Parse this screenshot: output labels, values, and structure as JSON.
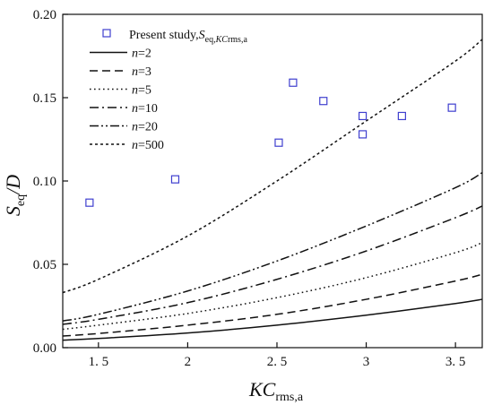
{
  "chart_data": {
    "type": "scatter",
    "xlabel": {
      "main": "KC",
      "sub": "rms,a"
    },
    "ylabel": {
      "main": "S",
      "sub": "eq",
      "tail": "/D"
    },
    "xlim": [
      1.3,
      3.65
    ],
    "ylim": [
      0.0,
      0.2
    ],
    "xticks": [
      1.5,
      2,
      2.5,
      3,
      3.5
    ],
    "xtick_labels": [
      "1. 5",
      "2",
      "2. 5",
      "3",
      "3. 5"
    ],
    "yticks": [
      0.0,
      0.05,
      0.1,
      0.15,
      0.2
    ],
    "ytick_labels": [
      "0.00",
      "0.05",
      "0.10",
      "0.15",
      "0.20"
    ],
    "grid": false,
    "legend_position": "top-left",
    "scatter": {
      "name": {
        "main": "Present study,",
        "s": "S",
        "sub": "eq,",
        "subItalic": "KC",
        "subTail": "rms,a"
      },
      "color": "#3f3fcf",
      "x": [
        1.45,
        1.93,
        2.51,
        2.59,
        2.76,
        2.98,
        2.98,
        3.2,
        3.48
      ],
      "y": [
        0.087,
        0.101,
        0.123,
        0.159,
        0.148,
        0.139,
        0.128,
        0.139,
        0.144
      ]
    },
    "series": [
      {
        "name": {
          "var": "n",
          "eq": "=2"
        },
        "dash": "solid",
        "x": [
          1.3,
          1.5,
          2.0,
          2.5,
          3.0,
          3.5,
          3.65
        ],
        "y": [
          0.0045,
          0.0055,
          0.0088,
          0.0135,
          0.0195,
          0.0265,
          0.029
        ]
      },
      {
        "name": {
          "var": "n",
          "eq": "=3"
        },
        "dash": "dash",
        "x": [
          1.3,
          1.5,
          2.0,
          2.5,
          3.0,
          3.5,
          3.65
        ],
        "y": [
          0.007,
          0.0085,
          0.0135,
          0.02,
          0.029,
          0.04,
          0.044
        ]
      },
      {
        "name": {
          "var": "n",
          "eq": "=5"
        },
        "dash": "dot",
        "x": [
          1.3,
          1.5,
          2.0,
          2.5,
          3.0,
          3.5,
          3.65
        ],
        "y": [
          0.011,
          0.0135,
          0.0205,
          0.03,
          0.042,
          0.057,
          0.063
        ]
      },
      {
        "name": {
          "var": "n",
          "eq": "=10"
        },
        "dash": "dashdot",
        "x": [
          1.3,
          1.5,
          2.0,
          2.5,
          3.0,
          3.5,
          3.65
        ],
        "y": [
          0.014,
          0.017,
          0.027,
          0.041,
          0.058,
          0.078,
          0.085
        ]
      },
      {
        "name": {
          "var": "n",
          "eq": "=20"
        },
        "dash": "dashdotdot",
        "x": [
          1.3,
          1.5,
          2.0,
          2.5,
          3.0,
          3.5,
          3.65
        ],
        "y": [
          0.016,
          0.02,
          0.034,
          0.052,
          0.073,
          0.096,
          0.105
        ]
      },
      {
        "name": {
          "var": "n",
          "eq": "=500"
        },
        "dash": "shortdash",
        "x": [
          1.3,
          1.5,
          2.0,
          2.5,
          3.0,
          3.5,
          3.65
        ],
        "y": [
          0.033,
          0.041,
          0.067,
          0.1,
          0.136,
          0.172,
          0.185
        ]
      }
    ]
  }
}
